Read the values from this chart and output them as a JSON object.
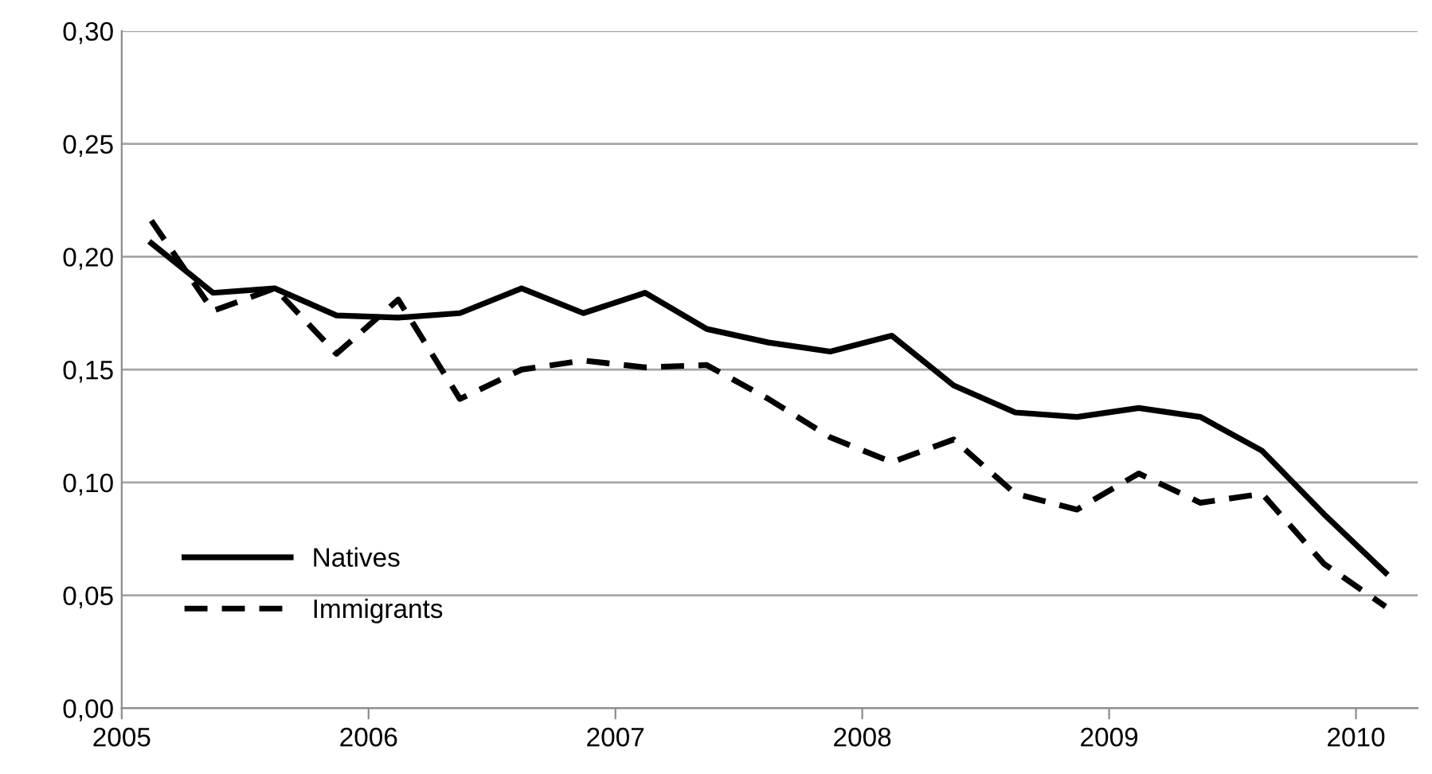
{
  "chart_data": {
    "type": "line",
    "x": [
      2005.12,
      2005.37,
      2005.62,
      2005.87,
      2006.12,
      2006.37,
      2006.62,
      2006.87,
      2007.12,
      2007.37,
      2007.62,
      2007.87,
      2008.12,
      2008.37,
      2008.62,
      2008.87,
      2009.12,
      2009.37,
      2009.62,
      2009.87,
      2010.12
    ],
    "series": [
      {
        "name": "Natives",
        "color": "#000000",
        "line_style": "solid",
        "values": [
          0.206,
          0.184,
          0.186,
          0.174,
          0.173,
          0.175,
          0.186,
          0.175,
          0.184,
          0.168,
          0.162,
          0.158,
          0.165,
          0.143,
          0.131,
          0.129,
          0.133,
          0.129,
          0.114,
          0.086,
          0.06
        ]
      },
      {
        "name": "Immigrants",
        "color": "#000000",
        "line_style": "dashed",
        "values": [
          0.216,
          0.176,
          0.186,
          0.157,
          0.181,
          0.137,
          0.15,
          0.154,
          0.151,
          0.152,
          0.137,
          0.12,
          0.109,
          0.119,
          0.095,
          0.088,
          0.104,
          0.091,
          0.095,
          0.064,
          0.045
        ]
      }
    ],
    "xlim": [
      2005,
      2010.25
    ],
    "xticks": [
      2005,
      2006,
      2007,
      2008,
      2009,
      2010
    ],
    "ylim": [
      0,
      0.3
    ],
    "yticks": [
      {
        "value": 0,
        "label": "0,00"
      },
      {
        "value": 0.05,
        "label": "0,05"
      },
      {
        "value": 0.1,
        "label": "0,10"
      },
      {
        "value": 0.15,
        "label": "0,15"
      },
      {
        "value": 0.2,
        "label": "0,20"
      },
      {
        "value": 0.25,
        "label": "0,25"
      },
      {
        "value": 0.3,
        "label": "0,30"
      }
    ],
    "grid": "y",
    "legend": "bottom left"
  }
}
